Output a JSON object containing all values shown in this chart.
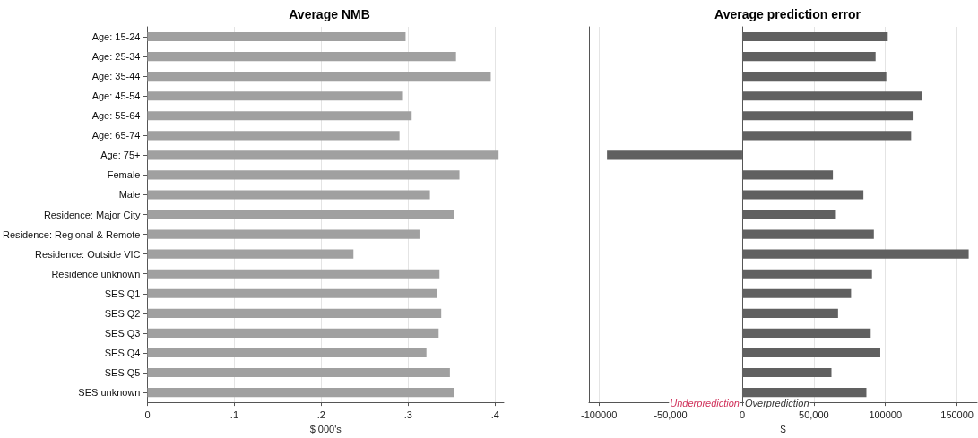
{
  "chart_data": [
    {
      "type": "bar",
      "orientation": "horizontal",
      "title": "Average NMB",
      "xlabel": "$ 000's",
      "categories": [
        "Age: 15-24",
        "Age: 25-34",
        "Age: 35-44",
        "Age: 45-54",
        "Age: 55-64",
        "Age: 65-74",
        "Age: 75+",
        "Female",
        "Male",
        "Residence: Major City",
        "Residence: Regional & Remote",
        "Residence: Outside VIC",
        "Residence unknown",
        "SES Q1",
        "SES Q2",
        "SES Q3",
        "SES Q4",
        "SES Q5",
        "SES unknown"
      ],
      "values": [
        0.297,
        0.355,
        0.395,
        0.294,
        0.304,
        0.29,
        0.404,
        0.359,
        0.325,
        0.353,
        0.313,
        0.237,
        0.336,
        0.333,
        0.338,
        0.335,
        0.321,
        0.348,
        0.353
      ],
      "color": "#a0a0a0",
      "xlim": [
        0,
        0.41
      ],
      "xticks": [
        0,
        {
          "value": 0.1,
          "label": ".1"
        },
        {
          "value": 0.2,
          "label": ".2"
        },
        {
          "value": 0.3,
          "label": ".3"
        },
        {
          "value": 0.4,
          "label": ".4"
        }
      ],
      "grid": "x"
    },
    {
      "type": "bar",
      "orientation": "horizontal",
      "title": "Average prediction error",
      "xlabel": "$",
      "categories": [
        null,
        null,
        null,
        null,
        null,
        null,
        null,
        null,
        null,
        null,
        null,
        null,
        null,
        null,
        null,
        null,
        null,
        null,
        null
      ],
      "values": [
        101600,
        93100,
        100600,
        125200,
        119600,
        117900,
        -94400,
        63300,
        84600,
        65400,
        91900,
        158100,
        90600,
        76000,
        66900,
        89700,
        96400,
        62300,
        86700
      ],
      "color": "#606060",
      "xlim": [
        -107000,
        164000
      ],
      "xticks": [
        -100000,
        {
          "value": -50000,
          "label": "-50,000"
        },
        0,
        {
          "value": 50000,
          "label": "50,000"
        },
        100000,
        150000
      ],
      "grid": "x",
      "tick_labels": "x",
      "annotations": [
        "Underprediction",
        "Overprediction"
      ]
    }
  ]
}
